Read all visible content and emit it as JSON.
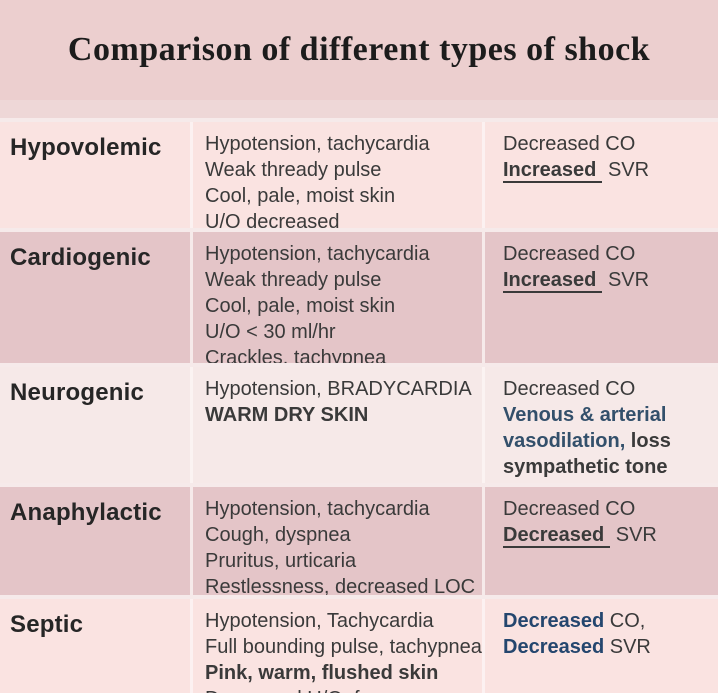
{
  "title": "Comparison of different types of shock",
  "colors": {
    "page_bg": "#f6eaea",
    "title_band_bg": "#eccfcf",
    "subband_bg": "#eed7d7",
    "row_pale_bg": "#fae3e1",
    "row_dusty_bg": "#e4c5c8",
    "row_palest_bg": "#f6e9e8",
    "title_text": "#1c1c1c",
    "name_text": "#262626",
    "body_text": "#3a3a3a",
    "blue": "#33506b",
    "navy": "#24466e"
  },
  "table": {
    "rows": [
      {
        "name": "Hypovolemic",
        "tone": "pale",
        "signs": [
          {
            "text": "Hypotension, tachycardia"
          },
          {
            "text": "Weak thready pulse"
          },
          {
            "text": "Cool, pale, moist skin"
          },
          {
            "text": "U/O decreased"
          }
        ],
        "hemodynamics": [
          [
            {
              "text": "Decreased CO"
            }
          ],
          [
            {
              "text": "Increased",
              "bold": true,
              "underline": true
            },
            {
              "text": " SVR"
            }
          ]
        ]
      },
      {
        "name": "Cardiogenic",
        "tone": "dusty",
        "signs": [
          {
            "text": "Hypotension, tachycardia"
          },
          {
            "text": "Weak thready pulse"
          },
          {
            "text": "Cool, pale, moist skin"
          },
          {
            "text": "U/O < 30 ml/hr"
          },
          {
            "text": "Crackles, tachypnea"
          }
        ],
        "hemodynamics": [
          [
            {
              "text": "Decreased CO"
            }
          ],
          [
            {
              "text": "Increased",
              "bold": true,
              "underline": true
            },
            {
              "text": " SVR"
            }
          ]
        ]
      },
      {
        "name": "Neurogenic",
        "tone": "palest",
        "signs": [
          {
            "text": "Hypotension, BRADYCARDIA"
          },
          {
            "text": "WARM DRY SKIN",
            "bold": true
          }
        ],
        "hemodynamics": [
          [
            {
              "text": "Decreased CO"
            }
          ],
          [
            {
              "text": "Venous & arterial",
              "bold": true,
              "color": "blue"
            }
          ],
          [
            {
              "text": "vasodilation,",
              "bold": true,
              "color": "blue"
            },
            {
              "text": " loss",
              "bold": true
            }
          ],
          [
            {
              "text": "sympathetic tone",
              "bold": true
            }
          ]
        ]
      },
      {
        "name": "Anaphylactic",
        "tone": "dusty",
        "signs": [
          {
            "text": "Hypotension, tachycardia"
          },
          {
            "text": "Cough, dyspnea"
          },
          {
            "text": "Pruritus, urticaria"
          },
          {
            "text": "Restlessness, decreased LOC"
          }
        ],
        "hemodynamics": [
          [
            {
              "text": "Decreased CO"
            }
          ],
          [
            {
              "text": "Decreased",
              "bold": true,
              "underline": true
            },
            {
              "text": " SVR"
            }
          ]
        ]
      },
      {
        "name": "Septic",
        "tone": "pale",
        "signs": [
          {
            "text": "Hypotension, Tachycardia"
          },
          {
            "text": "Full bounding pulse, tachypnea"
          },
          {
            "text": "Pink, warm, flushed skin",
            "bold": true
          },
          {
            "text": "Decreased U/O, fever"
          }
        ],
        "hemodynamics": [
          [
            {
              "text": "Decreased",
              "bold": true,
              "color": "navy"
            },
            {
              "text": " CO,"
            }
          ],
          [
            {
              "text": "Decreased",
              "bold": true,
              "color": "navy"
            },
            {
              "text": " SVR"
            }
          ]
        ]
      }
    ]
  }
}
